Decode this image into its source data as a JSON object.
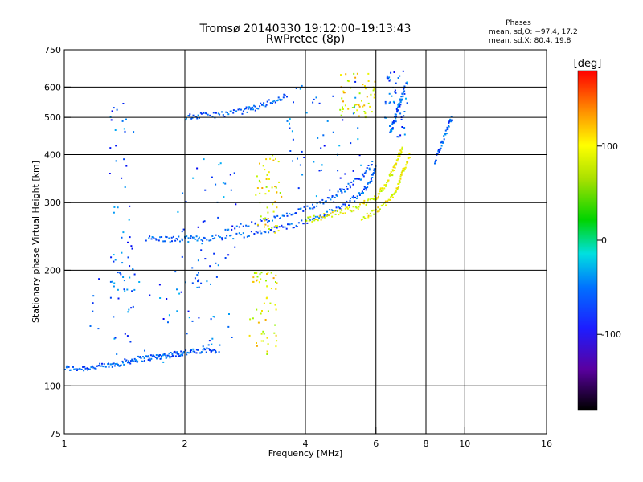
{
  "chart_data": {
    "type": "scatter",
    "title": "Tromsø 20140330 19:12:00–19:13:43",
    "subtitle": "RwPretec (8p)",
    "xlabel": "Frequency [MHz]",
    "ylabel": "Stationary phase Virtual Height [km]",
    "x_scale": "log",
    "y_scale": "log",
    "xlim": [
      1,
      16
    ],
    "ylim": [
      75,
      750
    ],
    "x_ticks": [
      1,
      2,
      4,
      6,
      8,
      10,
      16
    ],
    "x_tick_labels": [
      "1",
      "2",
      "4",
      "6",
      "8",
      "10",
      "16"
    ],
    "y_ticks": [
      75,
      100,
      200,
      300,
      400,
      500,
      600,
      750
    ],
    "y_tick_labels": [
      "75",
      "100",
      "200",
      "300",
      "400",
      "500",
      "600",
      "750"
    ],
    "grid": true,
    "x_gridlines": [
      2,
      4,
      6,
      8,
      10
    ],
    "y_gridlines": [
      100,
      200,
      300,
      400,
      500,
      600
    ],
    "stats": {
      "title": "Phases",
      "line_o": "mean, sd,O: −97.4, 17.2",
      "line_x": "mean, sd,X:  80.4, 19.8"
    },
    "colorbar": {
      "label": "[deg]",
      "range": [
        -180,
        180
      ],
      "ticks": [
        100,
        0,
        -100
      ],
      "tick_labels": [
        "100",
        "0",
        "-100"
      ],
      "colormap": "rainbow"
    },
    "traces": [
      {
        "phase": -100,
        "points": [
          [
            1.0,
            111
          ],
          [
            1.1,
            111
          ],
          [
            1.2,
            112
          ],
          [
            1.3,
            113
          ],
          [
            1.4,
            115
          ],
          [
            1.5,
            117
          ],
          [
            1.6,
            118
          ],
          [
            1.7,
            119
          ],
          [
            1.8,
            120
          ],
          [
            1.9,
            121
          ],
          [
            2.0,
            122
          ],
          [
            2.2,
            123
          ],
          [
            2.4,
            124
          ]
        ]
      },
      {
        "phase": -100,
        "points": [
          [
            1.6,
            242
          ],
          [
            1.8,
            241
          ],
          [
            2.0,
            241
          ],
          [
            2.2,
            242
          ],
          [
            2.5,
            244
          ],
          [
            3.0,
            250
          ],
          [
            3.5,
            258
          ],
          [
            4.0,
            268
          ],
          [
            4.5,
            280
          ],
          [
            5.0,
            295
          ],
          [
            5.5,
            315
          ],
          [
            5.8,
            340
          ],
          [
            6.0,
            370
          ]
        ]
      },
      {
        "phase": -100,
        "points": [
          [
            2.5,
            255
          ],
          [
            3.0,
            265
          ],
          [
            3.5,
            275
          ],
          [
            4.0,
            288
          ],
          [
            4.5,
            305
          ],
          [
            5.0,
            325
          ],
          [
            5.5,
            350
          ],
          [
            5.9,
            380
          ]
        ]
      },
      {
        "phase": -100,
        "points": [
          [
            2.0,
            500
          ],
          [
            2.2,
            505
          ],
          [
            2.5,
            510
          ],
          [
            2.8,
            520
          ],
          [
            3.0,
            530
          ],
          [
            3.3,
            550
          ],
          [
            3.6,
            570
          ]
        ]
      },
      {
        "phase": 100,
        "points": [
          [
            4.0,
            270
          ],
          [
            4.5,
            277
          ],
          [
            5.0,
            285
          ],
          [
            5.5,
            295
          ],
          [
            6.0,
            310
          ],
          [
            6.3,
            330
          ],
          [
            6.6,
            360
          ],
          [
            6.8,
            390
          ],
          [
            7.0,
            420
          ]
        ]
      },
      {
        "phase": 100,
        "points": [
          [
            5.5,
            270
          ],
          [
            6.0,
            285
          ],
          [
            6.5,
            305
          ],
          [
            6.8,
            330
          ],
          [
            7.0,
            360
          ],
          [
            7.3,
            400
          ]
        ]
      },
      {
        "phase": -100,
        "points": [
          [
            6.5,
            450
          ],
          [
            6.7,
            500
          ],
          [
            6.9,
            550
          ],
          [
            7.1,
            600
          ]
        ]
      },
      {
        "phase": -100,
        "points": [
          [
            8.4,
            380
          ],
          [
            8.7,
            420
          ],
          [
            9.0,
            460
          ],
          [
            9.3,
            500
          ]
        ]
      }
    ],
    "clusters": [
      {
        "phase": -100,
        "x": [
          1.1,
          2.4
        ],
        "y": [
          115,
          200
        ]
      },
      {
        "phase": -100,
        "x": [
          1.9,
          2.7
        ],
        "y": [
          120,
          400
        ]
      },
      {
        "phase": 100,
        "x": [
          2.9,
          3.4
        ],
        "y": [
          120,
          200
        ]
      },
      {
        "phase": 100,
        "x": [
          3.0,
          3.5
        ],
        "y": [
          250,
          400
        ]
      },
      {
        "phase": -100,
        "x": [
          1.3,
          1.5
        ],
        "y": [
          150,
          560
        ]
      },
      {
        "phase": -100,
        "x": [
          3.6,
          5.6
        ],
        "y": [
          300,
          620
        ]
      },
      {
        "phase": 100,
        "x": [
          4.8,
          6.0
        ],
        "y": [
          500,
          650
        ]
      },
      {
        "phase": -100,
        "x": [
          6.3,
          7.2
        ],
        "y": [
          440,
          660
        ]
      }
    ]
  }
}
